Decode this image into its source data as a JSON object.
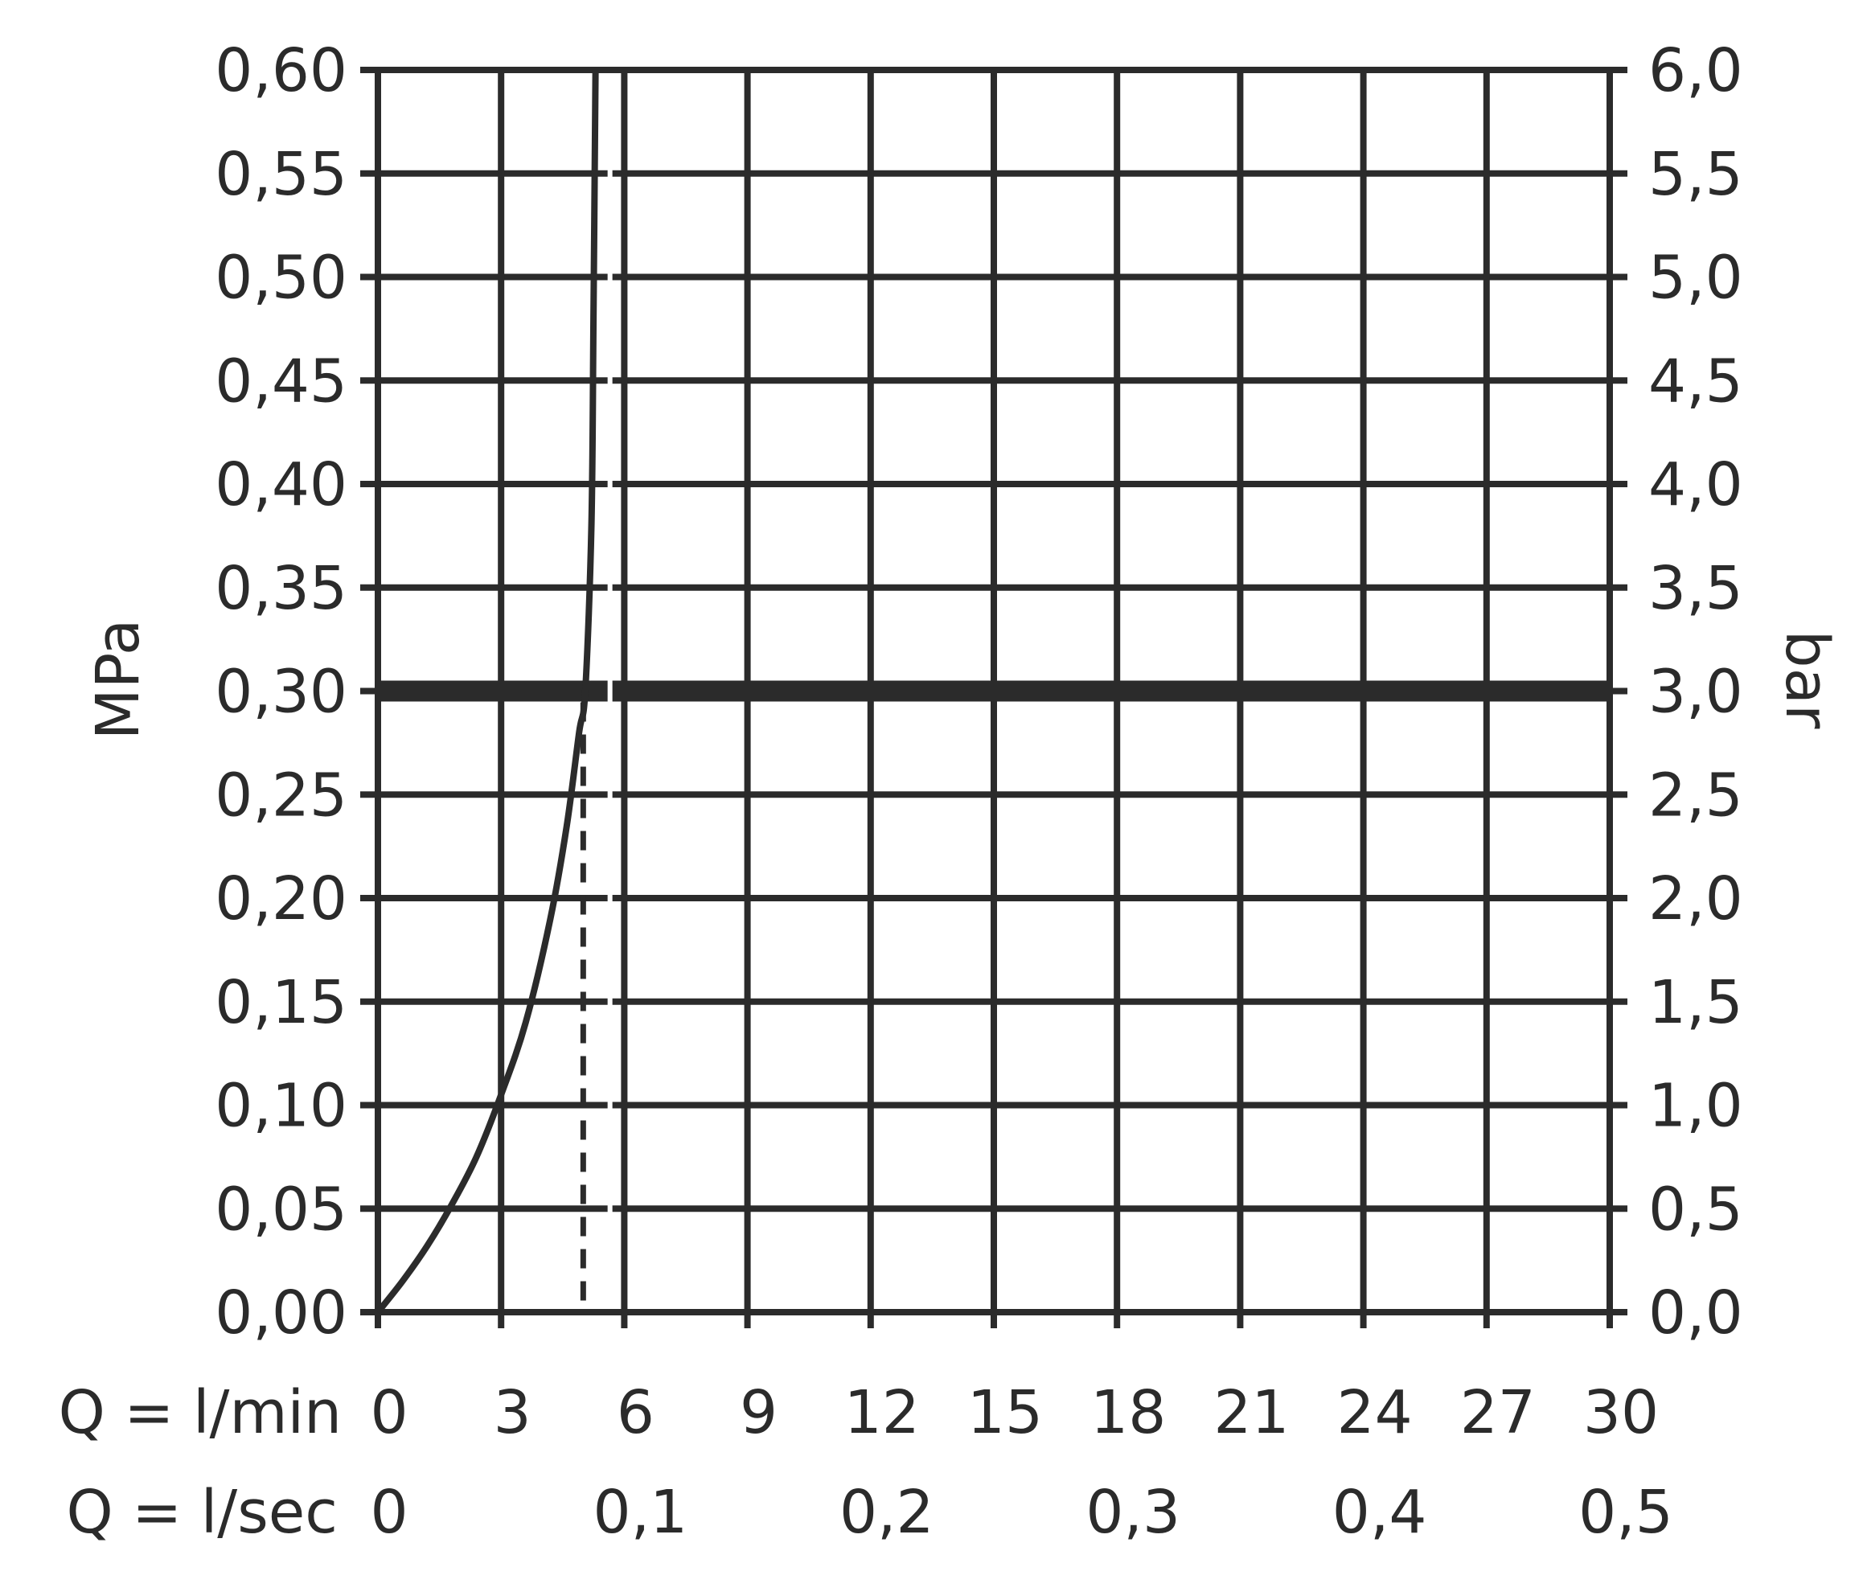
{
  "chart_data": {
    "type": "line",
    "title": "",
    "left_axis": {
      "label": "MPa",
      "range": [
        0,
        0.6
      ],
      "ticks": [
        "0,00",
        "0,05",
        "0,10",
        "0,15",
        "0,20",
        "0,25",
        "0,30",
        "0,35",
        "0,40",
        "0,45",
        "0,50",
        "0,55",
        "0,60"
      ]
    },
    "right_axis": {
      "label": "bar",
      "range": [
        0,
        6.0
      ],
      "ticks": [
        "0,0",
        "0,5",
        "1,0",
        "1,5",
        "2,0",
        "2,5",
        "3,0",
        "3,5",
        "4,0",
        "4,5",
        "5,0",
        "5,5",
        "6,0"
      ]
    },
    "x_axis_primary": {
      "label": "Q = l/min",
      "range": [
        0,
        30
      ],
      "tick_values": [
        0,
        3,
        6,
        9,
        12,
        15,
        18,
        21,
        24,
        27,
        30
      ],
      "tick_labels": [
        "0",
        "3",
        "6",
        "9",
        "12",
        "15",
        "18",
        "21",
        "24",
        "27",
        "30"
      ]
    },
    "x_axis_secondary": {
      "label": "Q = l/sec",
      "tick_values": [
        0,
        6,
        12,
        18,
        24,
        30
      ],
      "tick_labels": [
        "0",
        "0,1",
        "0,2",
        "0,3",
        "0,4",
        "0,5"
      ]
    },
    "grid": true,
    "series": [
      {
        "x": [
          0,
          0.6,
          1.2,
          1.8,
          2.4,
          3.0,
          3.6,
          4.2,
          4.6,
          4.9,
          5.05,
          5.2,
          5.25,
          5.3
        ],
        "y": [
          0,
          0.015,
          0.032,
          0.052,
          0.075,
          0.105,
          0.14,
          0.19,
          0.235,
          0.28,
          0.3,
          0.38,
          0.48,
          0.6
        ]
      }
    ],
    "reference_lines": {
      "horizontal_y": 0.3,
      "vertical_x": 5.0,
      "vertical_style": "dashed"
    }
  }
}
